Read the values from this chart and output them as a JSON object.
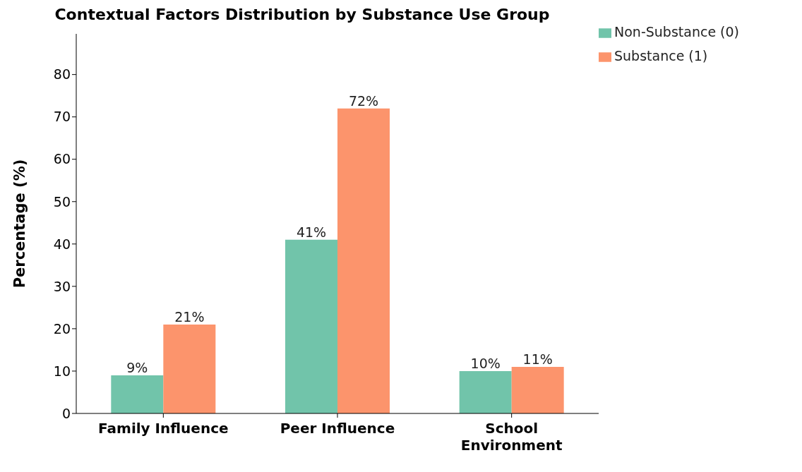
{
  "chart_data": {
    "type": "bar",
    "title": "Contextual Factors Distribution by Substance Use Group",
    "ylabel": "Percentage (%)",
    "categories": [
      "Family Influence",
      "Peer Influence",
      "School Environment"
    ],
    "series": [
      {
        "name": "Non-Substance (0)",
        "color": "#71c4aa",
        "values": [
          9,
          41,
          10
        ],
        "value_labels": [
          "9%",
          "41%",
          "10%"
        ]
      },
      {
        "name": "Substance (1)",
        "color": "#fc946c",
        "values": [
          21,
          72,
          11
        ],
        "value_labels": [
          "21%",
          "72%",
          "11%"
        ]
      }
    ],
    "ylim": [
      0,
      89.6
    ],
    "yticks": [
      0,
      10,
      20,
      30,
      40,
      50,
      60,
      70,
      80
    ],
    "grid": false,
    "legend": "top right"
  }
}
